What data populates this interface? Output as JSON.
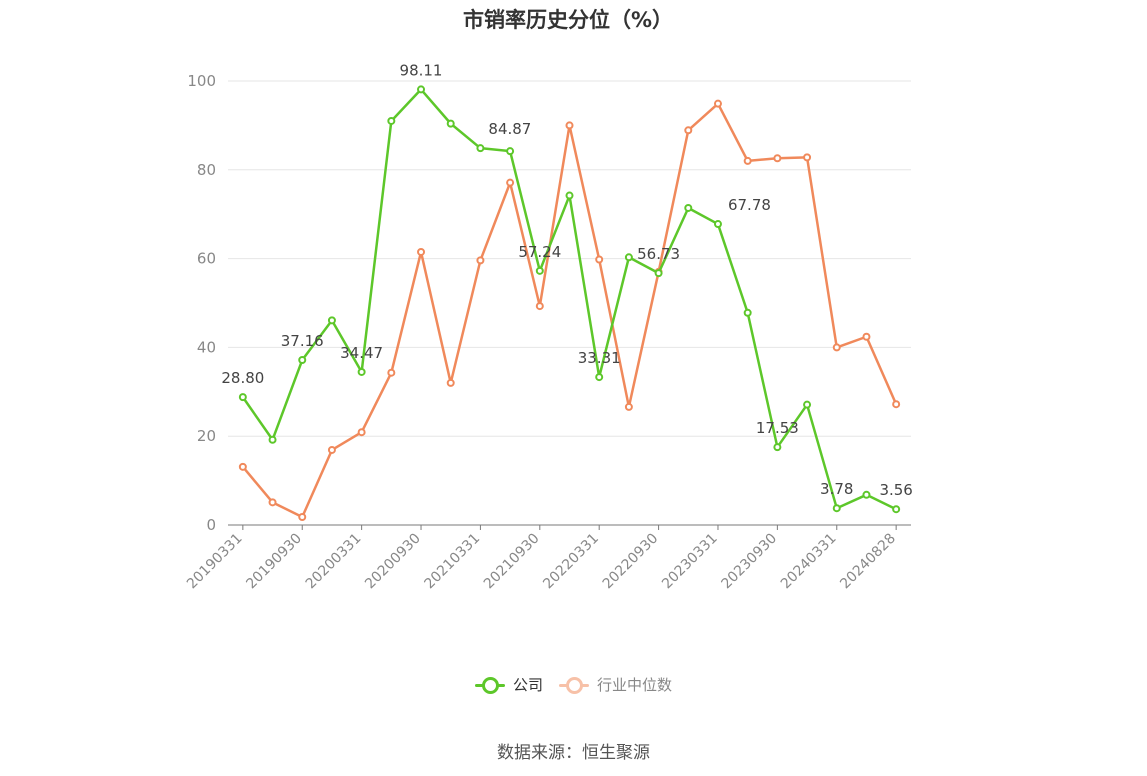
{
  "chart_data": {
    "type": "line",
    "title": "市销率历史分位（%）",
    "ylim": [
      0,
      100
    ],
    "yticks": [
      0,
      20,
      40,
      60,
      80,
      100
    ],
    "x": [
      "20190331",
      "20190630",
      "20190930",
      "20191231",
      "20200331",
      "20200630",
      "20200930",
      "20201231",
      "20210331",
      "20210630",
      "20210930",
      "20211231",
      "20220331",
      "20220630",
      "20220930",
      "20221231",
      "20230331",
      "20230630",
      "20230930",
      "20231231",
      "20240331",
      "20240630",
      "20240828"
    ],
    "xtick_labels": [
      "20190331",
      "20190930",
      "20200331",
      "20200930",
      "20210331",
      "20210930",
      "20220331",
      "20220930",
      "20230331",
      "20230930",
      "20240331",
      "20240828"
    ],
    "series": [
      {
        "name": "公司",
        "color": "#5dc72a",
        "values": [
          28.8,
          19.2,
          37.16,
          46.1,
          34.47,
          91.0,
          98.11,
          90.4,
          84.87,
          84.2,
          57.24,
          74.2,
          33.31,
          60.3,
          56.73,
          71.4,
          67.78,
          47.8,
          17.53,
          27.1,
          3.78,
          6.8,
          3.56
        ],
        "labels": {
          "0": "28.80",
          "2": "37.16",
          "4": "34.47",
          "6": "98.11",
          "8": "84.87",
          "10": "57.24",
          "12": "33.31",
          "14": "56.73",
          "16": "67.78",
          "18": "17.53",
          "20": "3.78",
          "22": "3.56"
        }
      },
      {
        "name": "行业中位数",
        "color": "#f0895b",
        "values": [
          13.1,
          5.1,
          1.8,
          16.9,
          20.9,
          34.3,
          61.5,
          32.0,
          59.6,
          77.1,
          49.3,
          90.0,
          59.8,
          26.6,
          57.0,
          88.9,
          94.9,
          82.0,
          82.6,
          82.8,
          40.0,
          42.4,
          27.2
        ]
      }
    ],
    "grid": true,
    "legend_position": "bottom"
  },
  "legend": {
    "company": "公司",
    "industry": "行业中位数"
  },
  "source": "数据来源：恒生聚源"
}
